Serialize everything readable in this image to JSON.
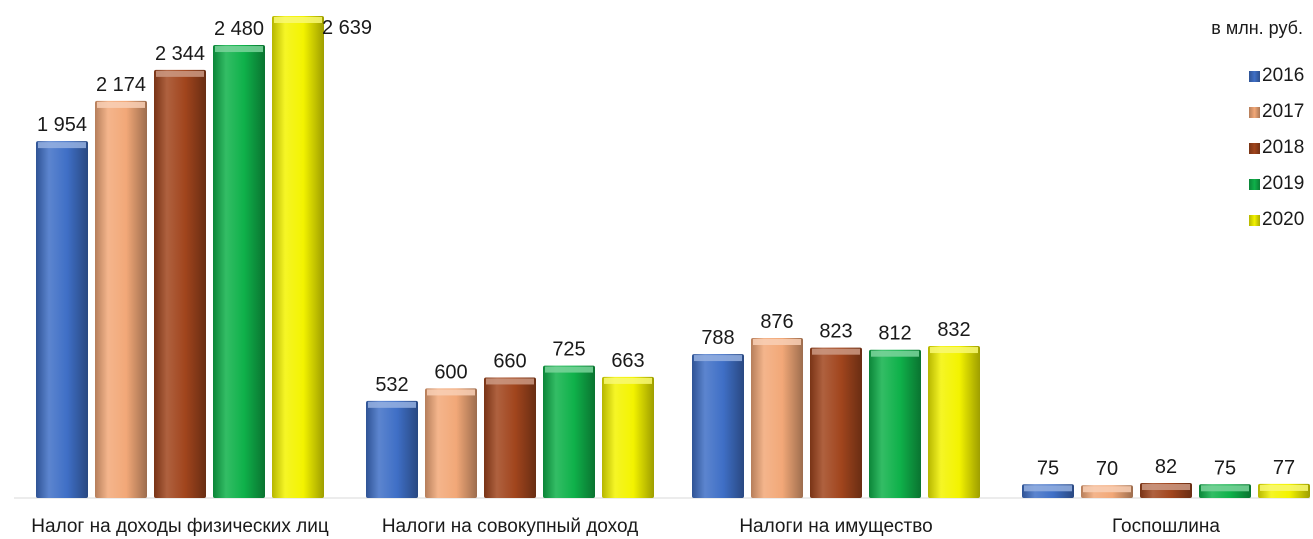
{
  "chart_data": {
    "type": "bar",
    "unit_label": "в млн. руб.",
    "categories": [
      "Налог на доходы физических лиц",
      "Налоги на совокупный доход",
      "Налоги на имущество",
      "Госпошлина"
    ],
    "series": [
      {
        "name": "2016",
        "color": "#3f6fc6",
        "values": [
          1954,
          532,
          788,
          75
        ],
        "labels": [
          "1 954",
          "532",
          "788",
          "75"
        ]
      },
      {
        "name": "2017",
        "color": "#f2a878",
        "values": [
          2174,
          600,
          876,
          70
        ],
        "labels": [
          "2 174",
          "600",
          "876",
          "70"
        ]
      },
      {
        "name": "2018",
        "color": "#a1451d",
        "values": [
          2344,
          660,
          823,
          82
        ],
        "labels": [
          "2 344",
          "660",
          "823",
          "82"
        ]
      },
      {
        "name": "2019",
        "color": "#0fb14a",
        "values": [
          2480,
          725,
          812,
          75
        ],
        "labels": [
          "2 480",
          "725",
          "812",
          "75"
        ]
      },
      {
        "name": "2020",
        "color": "#f3f300",
        "values": [
          2639,
          663,
          832,
          77
        ],
        "labels": [
          "2 639",
          "663",
          "832",
          "77"
        ]
      }
    ],
    "ylim": [
      0,
      2639
    ],
    "grid": false,
    "legend": "right"
  }
}
